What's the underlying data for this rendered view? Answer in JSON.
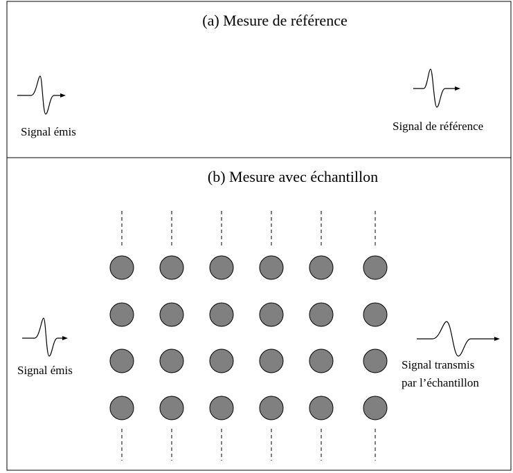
{
  "panels": [
    {
      "title": "(a) Mesure de référence",
      "emitted": "Signal émis",
      "received": [
        "Signal de référence"
      ]
    },
    {
      "title": "(b) Mesure avec échantillon",
      "emitted": "Signal émis",
      "received": [
        "Signal transmis",
        "par l’échantillon"
      ]
    }
  ]
}
